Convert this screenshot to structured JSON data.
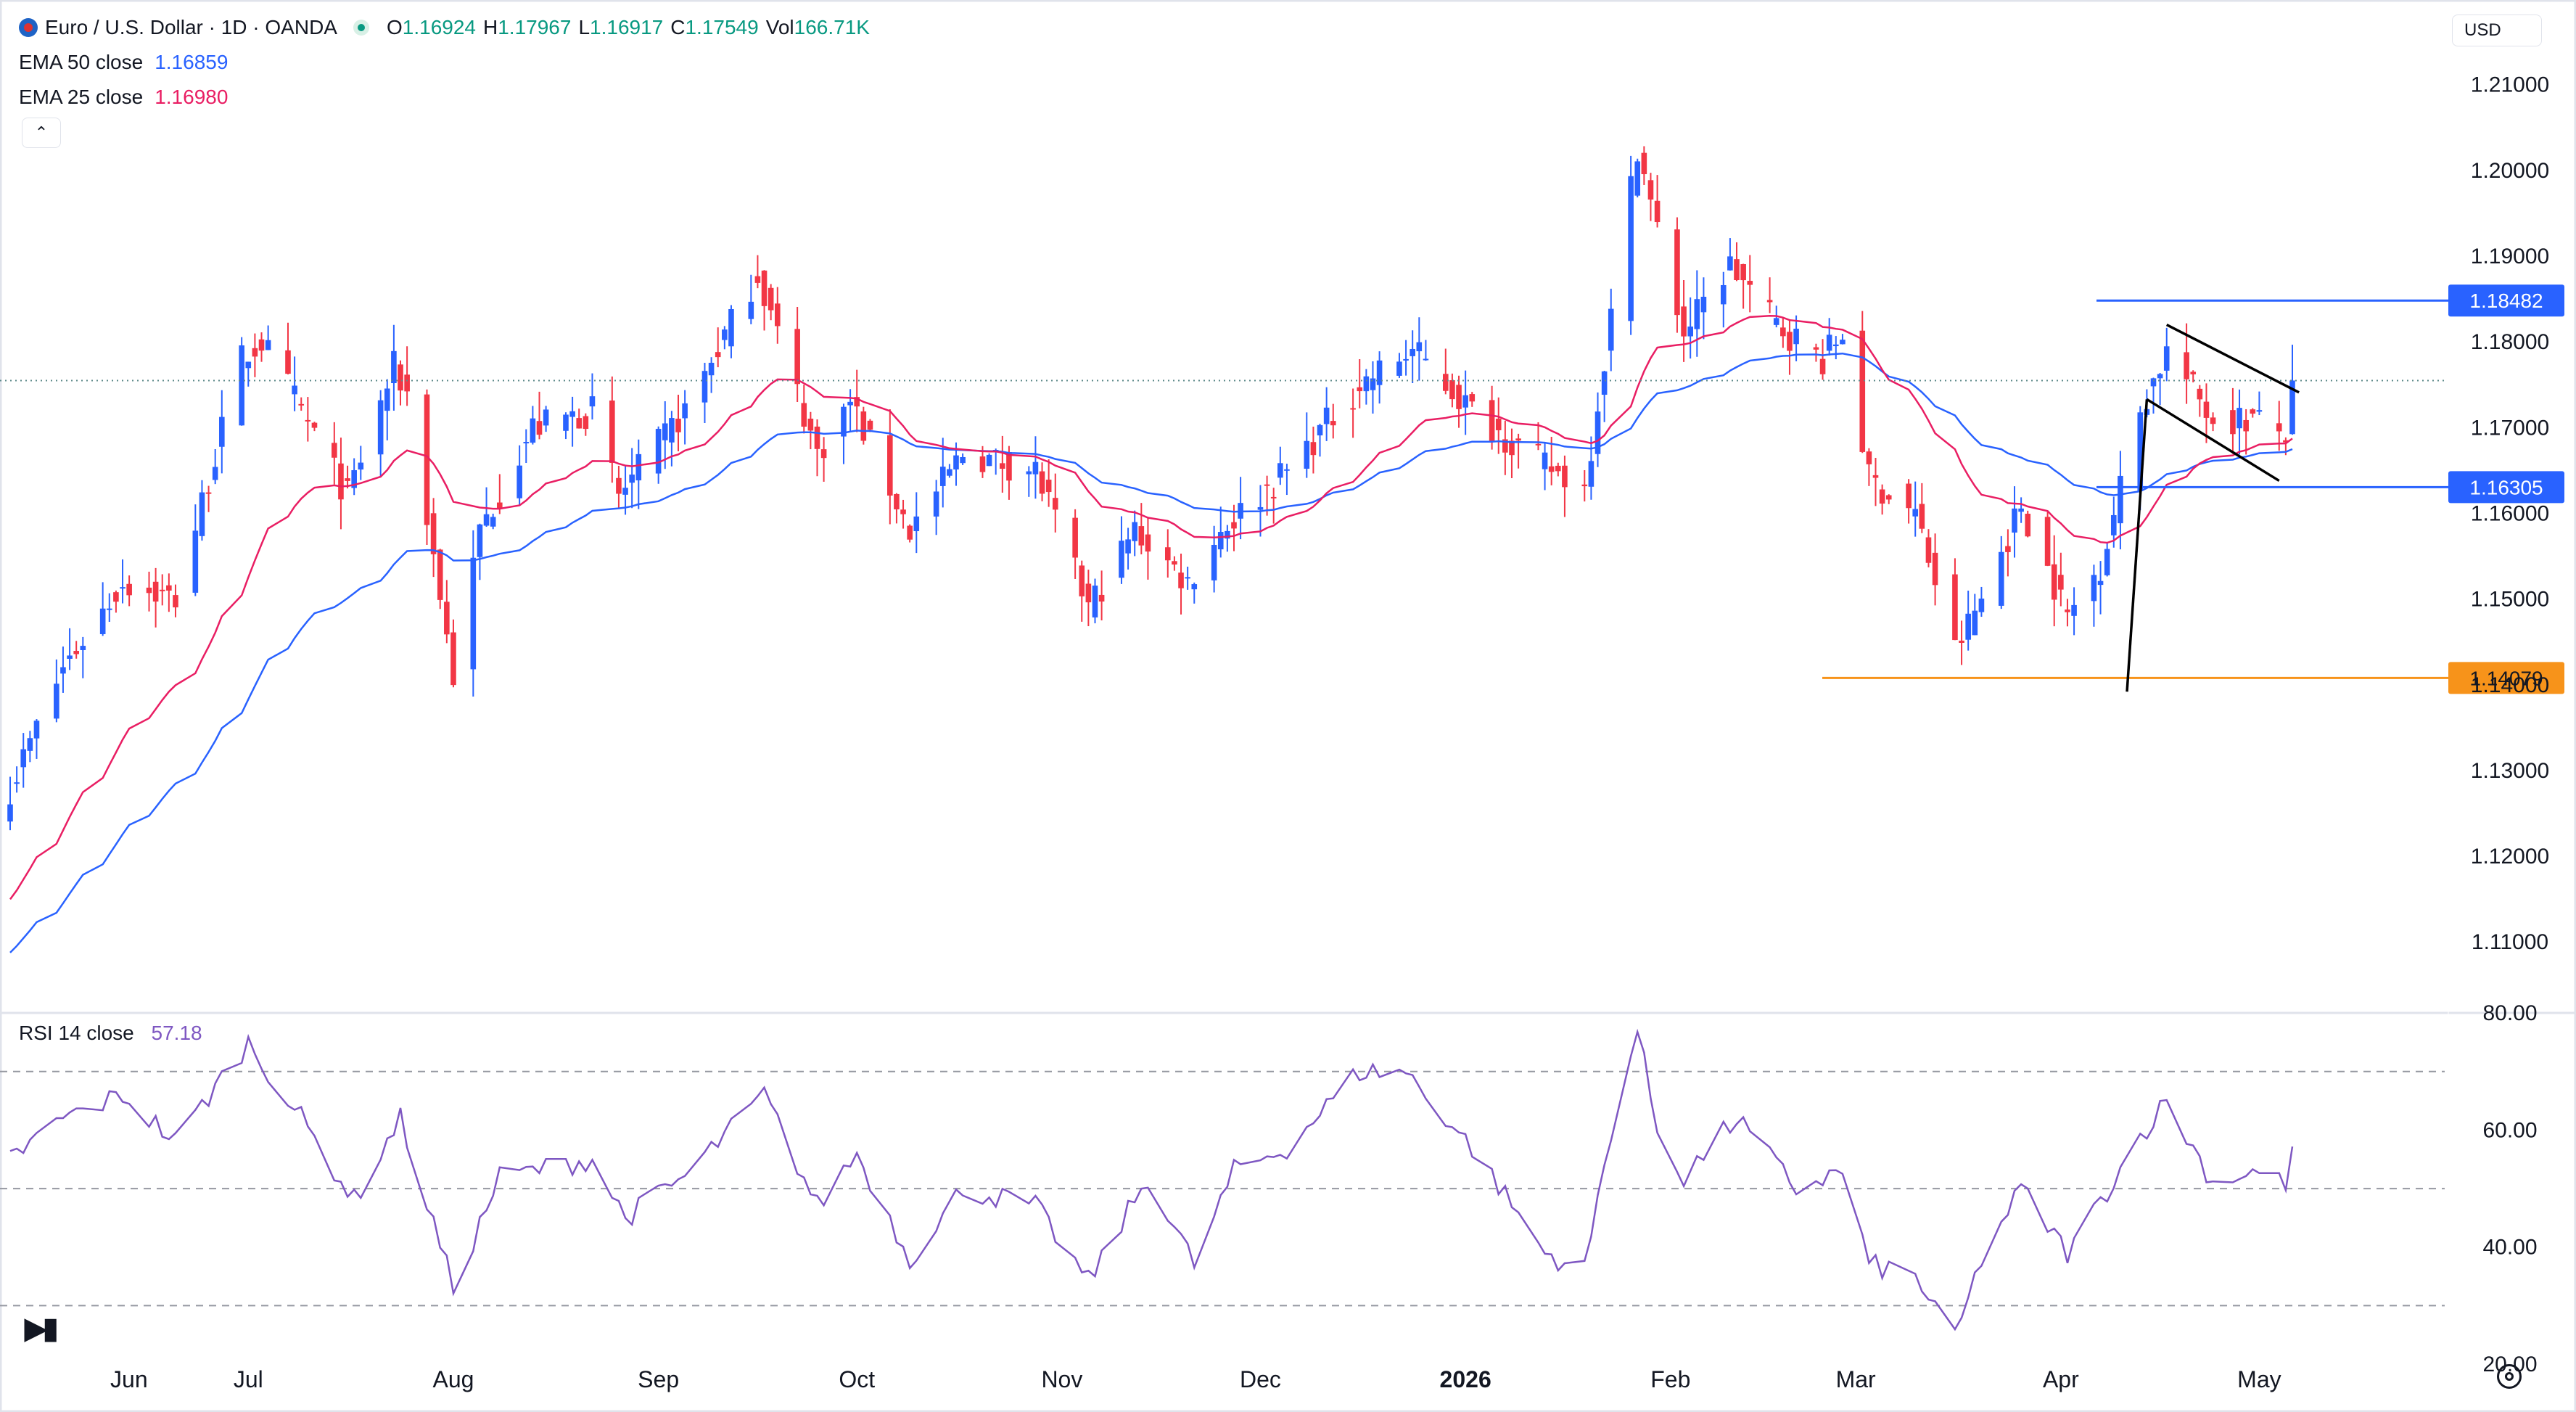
{
  "header": {
    "symbol": "Euro / U.S. Dollar · 1D · OANDA",
    "open_label": "O",
    "open": "1.16924",
    "high_label": "H",
    "high": "1.17967",
    "low_label": "L",
    "low": "1.16917",
    "close_label": "C",
    "close": "1.17549",
    "vol_label": "Vol",
    "vol": "166.71K"
  },
  "indicators": {
    "ema50_label": "EMA 50 close",
    "ema50_value": "1.16859",
    "ema25_label": "EMA 25 close",
    "ema25_value": "1.16980",
    "rsi_label": "RSI 14 close",
    "rsi_value": "57.18"
  },
  "controls": {
    "currency": "USD",
    "collapse_icon": "chevron-up-icon",
    "settings_icon": "gear-icon",
    "logo": "TV"
  },
  "colors": {
    "up": "#2962ff",
    "down": "#f23645",
    "ema50": "#2962ff",
    "ema25": "#e91e63",
    "rsi": "#7e57c2",
    "marker_blue": "#2962ff",
    "marker_orange": "#f7931a",
    "trendline": "#000000"
  },
  "chart_data": {
    "type": "candlestick",
    "x_labels": [
      "Jun",
      "Jul",
      "Aug",
      "Sep",
      "Oct",
      "Nov",
      "Dec",
      "2026",
      "Feb",
      "Mar",
      "Apr",
      "May"
    ],
    "price_axis_ticks": [
      "1.21000",
      "1.20000",
      "1.19000",
      "1.18000",
      "1.17000",
      "1.16000",
      "1.15000",
      "1.14000",
      "1.13000",
      "1.12000",
      "1.11000"
    ],
    "ylim": [
      1.1024,
      1.2148
    ],
    "current_price": 1.17549,
    "horizontal_levels": [
      {
        "label": "1.18482",
        "value": 1.18482,
        "color": "#2962ff"
      },
      {
        "label": "1.16305",
        "value": 1.16305,
        "color": "#2962ff"
      },
      {
        "label": "1.14079",
        "value": 1.14079,
        "color": "#f7931a"
      }
    ],
    "trendlines": [
      {
        "points": [
          [
            "2026-04-11",
            1.1392
          ],
          [
            "2026-04-14",
            1.1733
          ]
        ]
      },
      {
        "points": [
          [
            "2026-04-14",
            1.1733
          ],
          [
            "2026-05-04",
            1.1638
          ]
        ]
      },
      {
        "points": [
          [
            "2026-04-17",
            1.182
          ],
          [
            "2026-05-07",
            1.1741
          ]
        ]
      }
    ],
    "anchors": [
      {
        "date": "2025-05-26",
        "close": 1.128
      },
      {
        "date": "2025-06-03",
        "close": 1.142
      },
      {
        "date": "2025-06-12",
        "close": 1.152
      },
      {
        "date": "2025-06-20",
        "close": 1.15
      },
      {
        "date": "2025-06-30",
        "close": 1.178
      },
      {
        "date": "2025-07-03",
        "close": 1.18
      },
      {
        "date": "2025-07-09",
        "close": 1.172
      },
      {
        "date": "2025-07-16",
        "close": 1.162
      },
      {
        "date": "2025-07-23",
        "close": 1.177
      },
      {
        "date": "2025-07-25",
        "close": 1.174
      },
      {
        "date": "2025-08-01",
        "close": 1.141
      },
      {
        "date": "2025-08-05",
        "close": 1.158
      },
      {
        "date": "2025-08-13",
        "close": 1.17
      },
      {
        "date": "2025-08-22",
        "close": 1.172
      },
      {
        "date": "2025-08-26",
        "close": 1.162
      },
      {
        "date": "2025-09-05",
        "close": 1.172
      },
      {
        "date": "2025-09-16",
        "close": 1.188
      },
      {
        "date": "2025-09-25",
        "close": 1.167
      },
      {
        "date": "2025-09-30",
        "close": 1.173
      },
      {
        "date": "2025-10-09",
        "close": 1.158
      },
      {
        "date": "2025-10-17",
        "close": 1.167
      },
      {
        "date": "2025-10-28",
        "close": 1.165
      },
      {
        "date": "2025-11-05",
        "close": 1.149
      },
      {
        "date": "2025-11-12",
        "close": 1.158
      },
      {
        "date": "2025-11-20",
        "close": 1.152
      },
      {
        "date": "2025-11-25",
        "close": 1.158
      },
      {
        "date": "2025-12-05",
        "close": 1.165
      },
      {
        "date": "2025-12-16",
        "close": 1.175
      },
      {
        "date": "2025-12-24",
        "close": 1.179
      },
      {
        "date": "2026-01-02",
        "close": 1.172
      },
      {
        "date": "2026-01-12",
        "close": 1.166
      },
      {
        "date": "2026-01-19",
        "close": 1.163
      },
      {
        "date": "2026-01-23",
        "close": 1.183
      },
      {
        "date": "2026-01-27",
        "close": 1.203
      },
      {
        "date": "2026-01-29",
        "close": 1.196
      },
      {
        "date": "2026-02-03",
        "close": 1.181
      },
      {
        "date": "2026-02-10",
        "close": 1.189
      },
      {
        "date": "2026-02-17",
        "close": 1.182
      },
      {
        "date": "2026-02-24",
        "close": 1.178
      },
      {
        "date": "2026-02-27",
        "close": 1.181
      },
      {
        "date": "2026-03-03",
        "close": 1.164
      },
      {
        "date": "2026-03-10",
        "close": 1.16
      },
      {
        "date": "2026-03-16",
        "close": 1.144
      },
      {
        "date": "2026-03-20",
        "close": 1.15
      },
      {
        "date": "2026-03-26",
        "close": 1.161
      },
      {
        "date": "2026-04-02",
        "close": 1.148
      },
      {
        "date": "2026-04-07",
        "close": 1.154
      },
      {
        "date": "2026-04-13",
        "close": 1.172
      },
      {
        "date": "2026-04-17",
        "close": 1.179
      },
      {
        "date": "2026-04-24",
        "close": 1.171
      },
      {
        "date": "2026-04-30",
        "close": 1.171
      },
      {
        "date": "2026-05-05",
        "close": 1.1692
      },
      {
        "date": "2026-05-06",
        "close": 1.17549
      }
    ],
    "rsi": {
      "ylim": [
        20,
        82
      ],
      "ticks": [
        "80.00",
        "60.00",
        "40.00",
        "20.00"
      ],
      "bands": [
        70,
        50,
        30
      ],
      "anchors": [
        {
          "date": "2025-05-26",
          "value": 55
        },
        {
          "date": "2025-06-03",
          "value": 62
        },
        {
          "date": "2025-06-12",
          "value": 66
        },
        {
          "date": "2025-06-20",
          "value": 58
        },
        {
          "date": "2025-07-01",
          "value": 75
        },
        {
          "date": "2025-07-09",
          "value": 62
        },
        {
          "date": "2025-07-17",
          "value": 48
        },
        {
          "date": "2025-07-24",
          "value": 62
        },
        {
          "date": "2025-08-01",
          "value": 33
        },
        {
          "date": "2025-08-08",
          "value": 52
        },
        {
          "date": "2025-08-22",
          "value": 55
        },
        {
          "date": "2025-08-27",
          "value": 45
        },
        {
          "date": "2025-09-05",
          "value": 52
        },
        {
          "date": "2025-09-17",
          "value": 66
        },
        {
          "date": "2025-09-25",
          "value": 47
        },
        {
          "date": "2025-10-01",
          "value": 56
        },
        {
          "date": "2025-10-09",
          "value": 38
        },
        {
          "date": "2025-10-17",
          "value": 50
        },
        {
          "date": "2025-10-28",
          "value": 47
        },
        {
          "date": "2025-11-05",
          "value": 34
        },
        {
          "date": "2025-11-14",
          "value": 52
        },
        {
          "date": "2025-11-21",
          "value": 37
        },
        {
          "date": "2025-11-27",
          "value": 53
        },
        {
          "date": "2025-12-05",
          "value": 57
        },
        {
          "date": "2025-12-16",
          "value": 70
        },
        {
          "date": "2025-12-23",
          "value": 70
        },
        {
          "date": "2026-01-02",
          "value": 57
        },
        {
          "date": "2026-01-13",
          "value": 39
        },
        {
          "date": "2026-01-19",
          "value": 36
        },
        {
          "date": "2026-01-23",
          "value": 60
        },
        {
          "date": "2026-01-27",
          "value": 77
        },
        {
          "date": "2026-01-30",
          "value": 60
        },
        {
          "date": "2026-02-03",
          "value": 52
        },
        {
          "date": "2026-02-11",
          "value": 62
        },
        {
          "date": "2026-02-20",
          "value": 50
        },
        {
          "date": "2026-02-27",
          "value": 53
        },
        {
          "date": "2026-03-03",
          "value": 37
        },
        {
          "date": "2026-03-10",
          "value": 35
        },
        {
          "date": "2026-03-16",
          "value": 24
        },
        {
          "date": "2026-03-20",
          "value": 38
        },
        {
          "date": "2026-03-26",
          "value": 50
        },
        {
          "date": "2026-04-02",
          "value": 39
        },
        {
          "date": "2026-04-06",
          "value": 46
        },
        {
          "date": "2026-04-13",
          "value": 59
        },
        {
          "date": "2026-04-17",
          "value": 65
        },
        {
          "date": "2026-04-24",
          "value": 51
        },
        {
          "date": "2026-04-30",
          "value": 53
        },
        {
          "date": "2026-05-05",
          "value": 51
        },
        {
          "date": "2026-05-06",
          "value": 57.18
        }
      ]
    }
  }
}
